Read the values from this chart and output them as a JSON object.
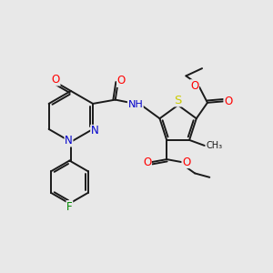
{
  "bg_color": "#e8e8e8",
  "bond_color": "#1a1a1a",
  "bond_width": 1.4,
  "atom_colors": {
    "O": "#ff0000",
    "N": "#0000cc",
    "S": "#cccc00",
    "F": "#008800",
    "C": "#1a1a1a",
    "H": "#1a1a1a"
  },
  "font_size": 7.5,
  "fig_width": 3.0,
  "fig_height": 3.0,
  "dpi": 100
}
